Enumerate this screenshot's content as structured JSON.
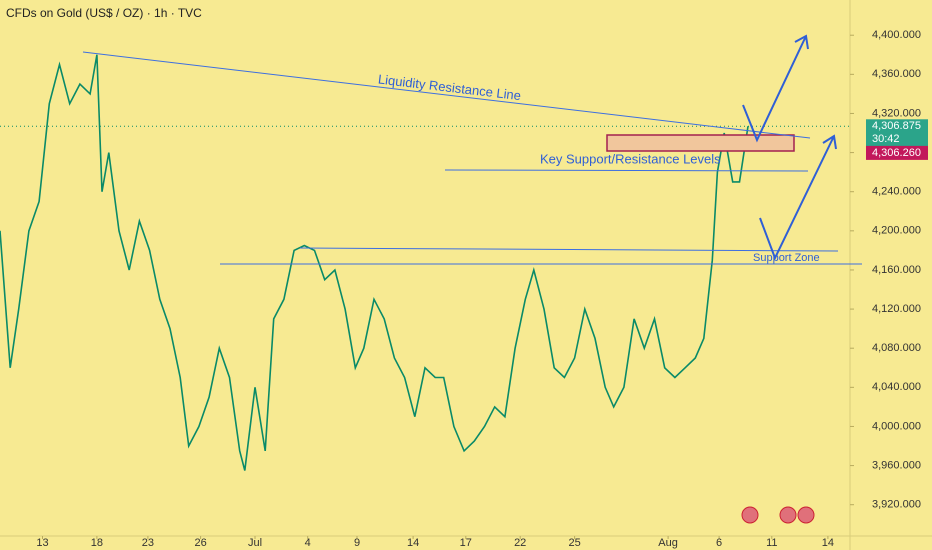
{
  "chart_data": {
    "type": "line",
    "title": "CFDs on Gold (US$ / OZ) · 1h · TVC",
    "series": [
      {
        "name": "Gold",
        "color": "#0a8a68",
        "x": [
          -2.5,
          -1.9,
          -1.4,
          -0.8,
          -0.2,
          0.4,
          1.0,
          1.6,
          2.2,
          2.8,
          3.2,
          3.5,
          3.9,
          4.5,
          5.1,
          5.7,
          6.3,
          6.9,
          7.5,
          8.1,
          8.6,
          9.2,
          9.8,
          10.4,
          11.0,
          11.6,
          11.9,
          12.5,
          13.1,
          13.6,
          14.2,
          14.8,
          15.4,
          16.0,
          16.6,
          17.2,
          17.8,
          18.4,
          18.9,
          19.5,
          20.1,
          20.7,
          21.3,
          21.9,
          22.5,
          23.1,
          23.6,
          24.2,
          24.8,
          25.4,
          26.0,
          26.6,
          27.2,
          27.8,
          28.4,
          28.9,
          29.5,
          30.1,
          30.7,
          31.3,
          31.9,
          32.5,
          33.1,
          33.6,
          34.2,
          34.8,
          35.4,
          36.0,
          36.6,
          37.2,
          37.8,
          38.4,
          38.9,
          39.4,
          39.7,
          40.1,
          40.6,
          41.0,
          41.5
        ],
        "values": [
          4200,
          4060,
          4120,
          4200,
          4230,
          4330,
          4370,
          4330,
          4350,
          4340,
          4380,
          4240,
          4280,
          4200,
          4160,
          4210,
          4180,
          4130,
          4100,
          4050,
          3980,
          4000,
          4030,
          4080,
          4050,
          3975,
          3955,
          4040,
          3975,
          4110,
          4130,
          4180,
          4185,
          4180,
          4150,
          4160,
          4120,
          4060,
          4080,
          4130,
          4110,
          4070,
          4050,
          4010,
          4060,
          4050,
          4050,
          4000,
          3975,
          3985,
          4000,
          4020,
          4010,
          4080,
          4130,
          4160,
          4120,
          4060,
          4050,
          4070,
          4120,
          4090,
          4040,
          4020,
          4040,
          4110,
          4080,
          4110,
          4060,
          4050,
          4060,
          4070,
          4090,
          4170,
          4260,
          4300,
          4250,
          4250,
          4306.875
        ]
      }
    ],
    "xlim": [
      -2.5,
      47.5
    ],
    "xticks": [
      {
        "value": 0,
        "label": "13"
      },
      {
        "value": 3.2,
        "label": "18"
      },
      {
        "value": 6.2,
        "label": "23"
      },
      {
        "value": 9.3,
        "label": "26"
      },
      {
        "value": 12.5,
        "label": "Jul"
      },
      {
        "value": 15.6,
        "label": "4"
      },
      {
        "value": 18.5,
        "label": "9"
      },
      {
        "value": 21.8,
        "label": "14"
      },
      {
        "value": 24.9,
        "label": "17"
      },
      {
        "value": 28.1,
        "label": "22"
      },
      {
        "value": 31.3,
        "label": "25"
      },
      {
        "value": 36.8,
        "label": "Aug"
      },
      {
        "value": 39.8,
        "label": "6"
      },
      {
        "value": 42.9,
        "label": "11"
      },
      {
        "value": 46.2,
        "label": "14"
      }
    ],
    "ylim": [
      3888,
      4436
    ],
    "yticks": [
      {
        "value": 3920,
        "label": "3,920.000"
      },
      {
        "value": 3960,
        "label": "3,960.000"
      },
      {
        "value": 4000,
        "label": "4,000.000"
      },
      {
        "value": 4040,
        "label": "4,040.000"
      },
      {
        "value": 4080,
        "label": "4,080.000"
      },
      {
        "value": 4120,
        "label": "4,120.000"
      },
      {
        "value": 4160,
        "label": "4,160.000"
      },
      {
        "value": 4200,
        "label": "4,200.000"
      },
      {
        "value": 4240,
        "label": "4,240.000"
      },
      {
        "value": 4280,
        "label": "4,280.000"
      },
      {
        "value": 4320,
        "label": "4,320.000"
      },
      {
        "value": 4360,
        "label": "4,360.000"
      },
      {
        "value": 4400,
        "label": "4,400.000"
      }
    ],
    "grid": false,
    "last_price": {
      "value": 4306.875,
      "label": "4,306.875"
    },
    "countdown": "30:42",
    "bid_price": {
      "value": 4306.26,
      "label": "4,306.260"
    },
    "annotations": [
      "Liquidity Resistance Line",
      "Key Support/Resistance Levels",
      "Support Zone"
    ]
  }
}
